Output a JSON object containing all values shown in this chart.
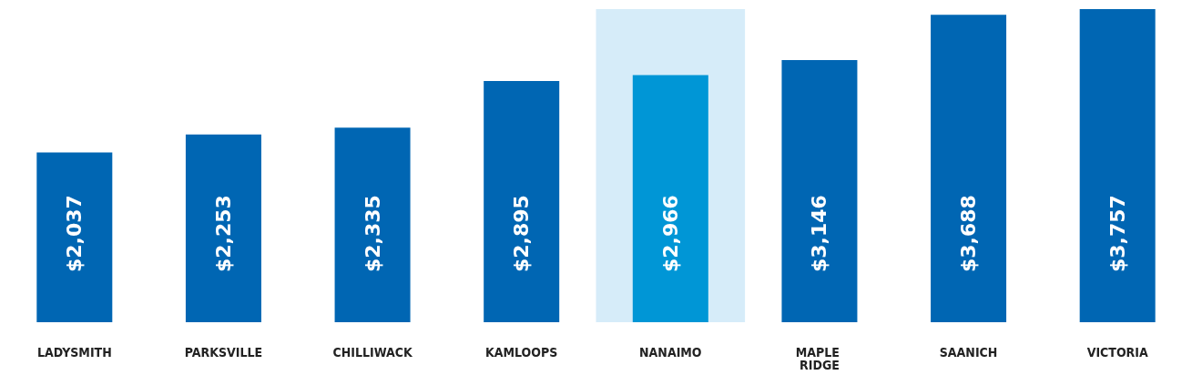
{
  "chart_data": {
    "type": "bar",
    "categories": [
      "LADYSMITH",
      "PARKSVILLE",
      "CHILLIWACK",
      "KAMLOOPS",
      "NANAIMO",
      "MAPLE RIDGE",
      "SAANICH",
      "VICTORIA"
    ],
    "values": [
      2037,
      2253,
      2335,
      2895,
      2966,
      3146,
      3688,
      3757
    ],
    "colors": [
      "#0066b3",
      "#0066b3",
      "#0066b3",
      "#0066b3",
      "#0096d6",
      "#0066b3",
      "#0066b3",
      "#0066b3"
    ],
    "value_labels": [
      "$2,037",
      "$2,253",
      "$2,335",
      "$2,895",
      "$2,966",
      "$3,146",
      "$3,688",
      "$3,757"
    ],
    "bands": [
      {
        "axis": "x",
        "from": "NANAIMO",
        "to": "NANAIMO",
        "color": "#d6ecf9"
      }
    ],
    "grid": false
  }
}
